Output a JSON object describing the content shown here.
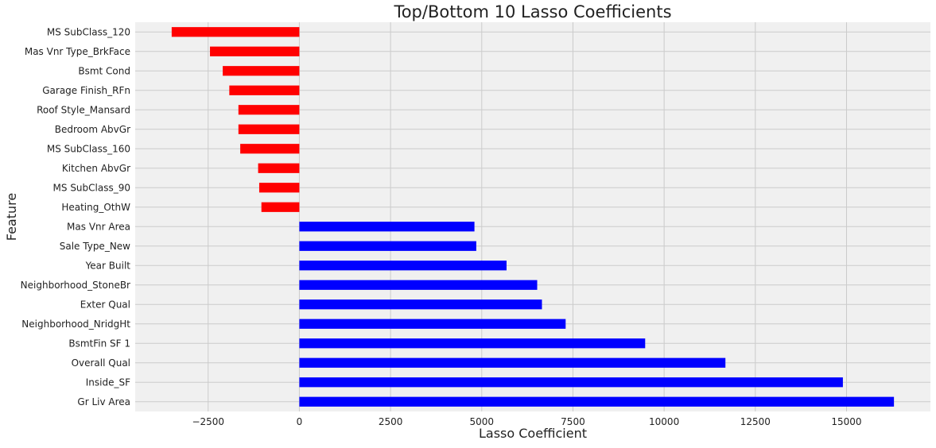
{
  "chart_data": {
    "type": "bar",
    "orientation": "horizontal",
    "title": "Top/Bottom 10 Lasso Coefficients",
    "xlabel": "Lasso Coefficient",
    "ylabel": "Feature",
    "xlim": [
      -4500,
      17300
    ],
    "xticks": [
      -2500,
      0,
      2500,
      5000,
      7500,
      10000,
      12500,
      15000
    ],
    "xtick_labels": [
      "−2500",
      "0",
      "2500",
      "5000",
      "7500",
      "10000",
      "12500",
      "15000"
    ],
    "grid": true,
    "legend": "none",
    "categories": [
      "MS SubClass_120",
      "Mas Vnr Type_BrkFace",
      "Bsmt Cond",
      "Garage Finish_RFn",
      "Roof Style_Mansard",
      "Bedroom AbvGr",
      "MS SubClass_160",
      "Kitchen AbvGr",
      "MS SubClass_90",
      "Heating_OthW",
      "Mas Vnr Area",
      "Sale Type_New",
      "Year Built",
      "Neighborhood_StoneBr",
      "Exter Qual",
      "Neighborhood_NridgHt",
      "BsmtFin SF 1",
      "Overall Qual",
      "Inside_SF",
      "Gr Liv Area"
    ],
    "values": [
      -3500,
      -2450,
      -2100,
      -1920,
      -1670,
      -1670,
      -1620,
      -1130,
      -1100,
      -1040,
      4800,
      4850,
      5680,
      6520,
      6650,
      7300,
      9480,
      11680,
      14900,
      16300
    ],
    "colors": {
      "negative": "#ff0000",
      "positive": "#0000ff",
      "plot_background": "#f0f0f0",
      "grid": "#cbcbcb",
      "text": "#222222"
    }
  }
}
